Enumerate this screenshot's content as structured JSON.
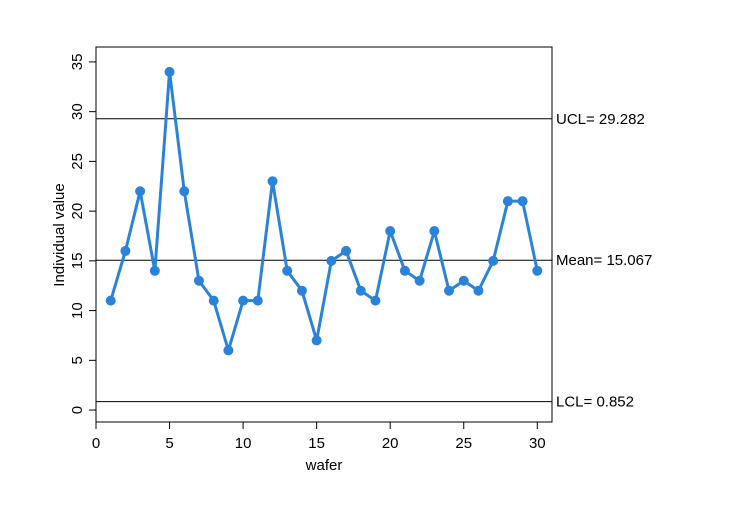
{
  "chart_data": {
    "type": "line",
    "title": "",
    "xlabel": "wafer",
    "ylabel": "Individual value",
    "xlim": [
      0,
      31
    ],
    "ylim": [
      -1.2,
      36.5
    ],
    "xticks": [
      0,
      5,
      10,
      15,
      20,
      25,
      30
    ],
    "yticks": [
      0,
      5,
      10,
      15,
      20,
      25,
      30,
      35
    ],
    "grid": false,
    "legend": "none",
    "series_color": "#2b83d9",
    "x": [
      1,
      2,
      3,
      4,
      5,
      6,
      7,
      8,
      9,
      10,
      11,
      12,
      13,
      14,
      15,
      16,
      17,
      18,
      19,
      20,
      21,
      22,
      23,
      24,
      25,
      26,
      27,
      28,
      29,
      30
    ],
    "values": [
      11,
      16,
      22,
      14,
      34,
      22,
      13,
      11,
      6,
      11,
      11,
      23,
      14,
      12,
      7,
      15,
      16,
      12,
      11,
      18,
      14,
      13,
      18,
      12,
      13,
      12,
      15,
      21,
      21,
      14
    ],
    "reference_lines": [
      {
        "value": 29.282,
        "label": "UCL= 29.282"
      },
      {
        "value": 15.067,
        "label": "Mean= 15.067"
      },
      {
        "value": 0.852,
        "label": "LCL= 0.852"
      }
    ]
  }
}
